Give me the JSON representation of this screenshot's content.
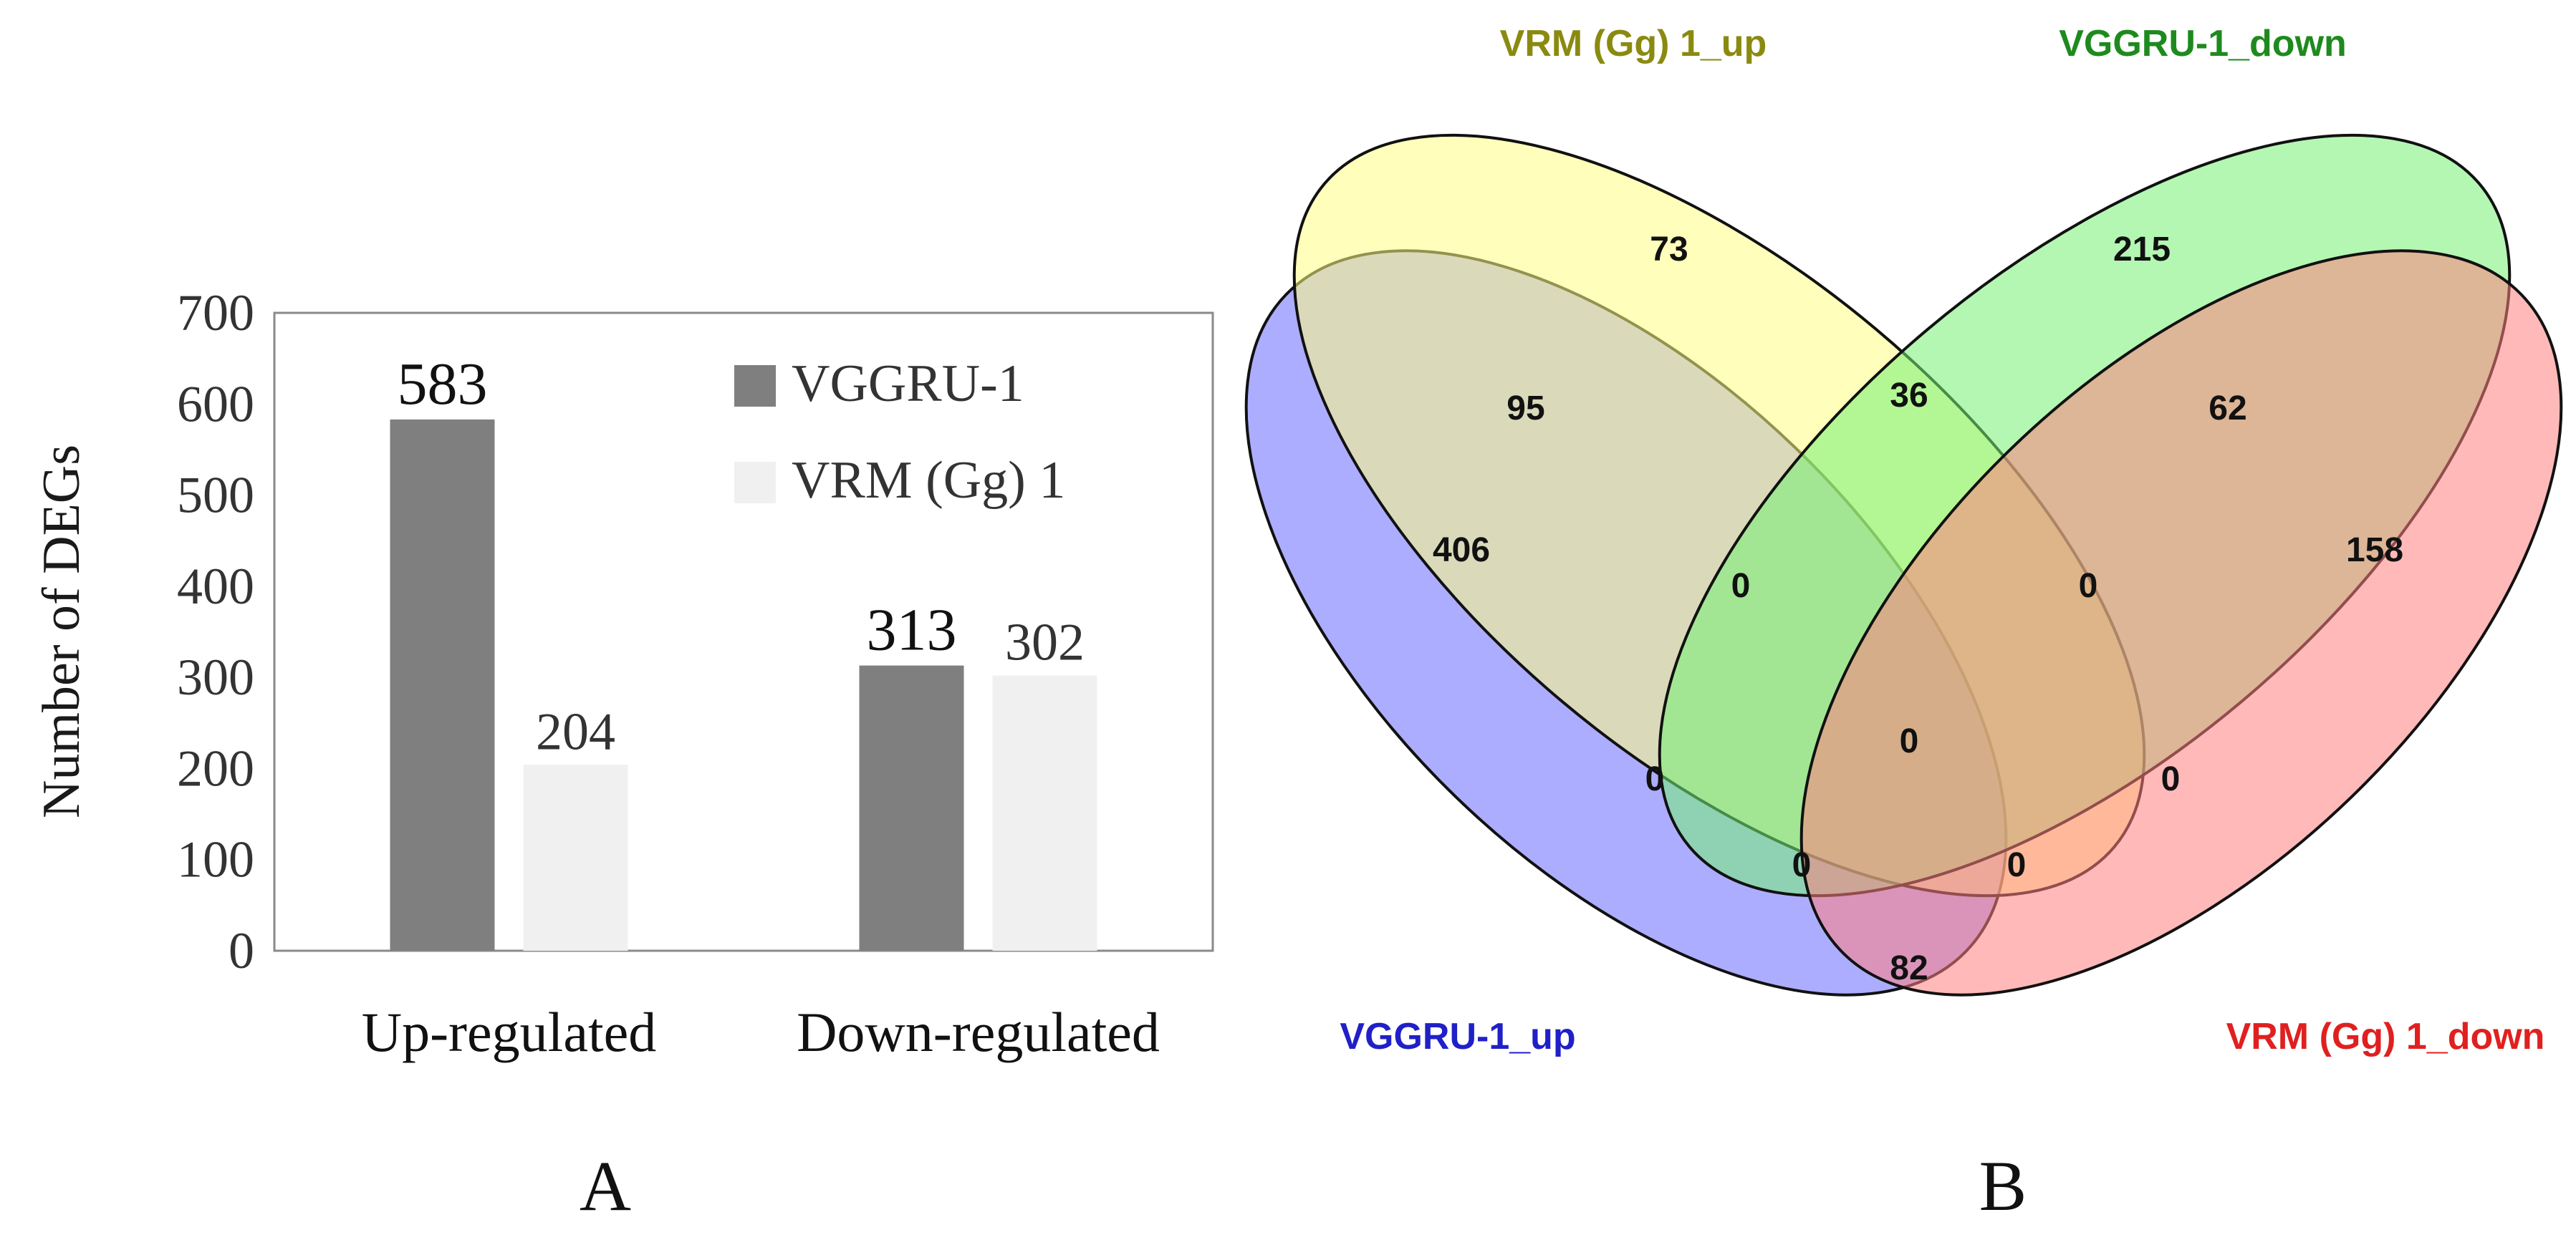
{
  "panel_a": {
    "label": "A",
    "chart_data": {
      "type": "bar",
      "title": "",
      "xlabel": "",
      "ylabel": "Number of  DEGs",
      "ylim": [
        0,
        700
      ],
      "yticks": [
        "0",
        "100",
        "200",
        "300",
        "400",
        "500",
        "600",
        "700"
      ],
      "legend_position": "top-right",
      "categories": [
        "Up-regulated",
        "Down-regulated"
      ],
      "series": [
        {
          "name": "VGGRU-1",
          "values": [
            583,
            313
          ],
          "labels": [
            "583",
            "313"
          ],
          "color": "#7f7f7f"
        },
        {
          "name": "VRM (Gg) 1",
          "values": [
            204,
            302
          ],
          "labels": [
            "204",
            "302"
          ],
          "color": "#f0f0f0"
        }
      ]
    }
  },
  "panel_b": {
    "label": "B",
    "venn": {
      "sets": [
        {
          "id": "vggru_up",
          "name": "VGGRU-1_up",
          "color": "#7b7bff",
          "text_color": "#2020c8"
        },
        {
          "id": "vrm_up",
          "name": "VRM (Gg) 1_up",
          "color": "#ffff84",
          "text_color": "#8a8a10"
        },
        {
          "id": "vggru_down",
          "name": "VGGRU-1_down",
          "color": "#74f074",
          "text_color": "#1e8a1e"
        },
        {
          "id": "vrm_down",
          "name": "VRM (Gg) 1_down",
          "color": "#ff8080",
          "text_color": "#e02020"
        }
      ],
      "regions": [
        {
          "sets": "VGGRU-1_up only",
          "value": "406"
        },
        {
          "sets": "VRM (Gg) 1_up only",
          "value": "73"
        },
        {
          "sets": "VGGRU-1_down only",
          "value": "215"
        },
        {
          "sets": "VRM (Gg) 1_down only",
          "value": "158"
        },
        {
          "sets": "VGGRU-1_up & VRM (Gg) 1_up",
          "value": "95"
        },
        {
          "sets": "VRM (Gg) 1_up & VGGRU-1_down",
          "value": "36"
        },
        {
          "sets": "VGGRU-1_down & VRM (Gg) 1_down",
          "value": "62"
        },
        {
          "sets": "VGGRU-1_up & VRM (Gg) 1_up & VGGRU-1_down",
          "value": "0"
        },
        {
          "sets": "VRM (Gg) 1_up & VGGRU-1_down & VRM (Gg) 1_down",
          "value": "0"
        },
        {
          "sets": "VGGRU-1_up & VGGRU-1_down",
          "value": "0"
        },
        {
          "sets": "all four",
          "value": "0"
        },
        {
          "sets": "VRM (Gg) 1_up & VRM (Gg) 1_down",
          "value": "0"
        },
        {
          "sets": "VGGRU-1_up & VGGRU-1_down & VRM (Gg) 1_down",
          "value": "0"
        },
        {
          "sets": "VGGRU-1_up & VRM (Gg) 1_up & VRM (Gg) 1_down",
          "value": "0"
        },
        {
          "sets": "VGGRU-1_up & VRM (Gg) 1_down",
          "value": "82"
        }
      ]
    }
  }
}
